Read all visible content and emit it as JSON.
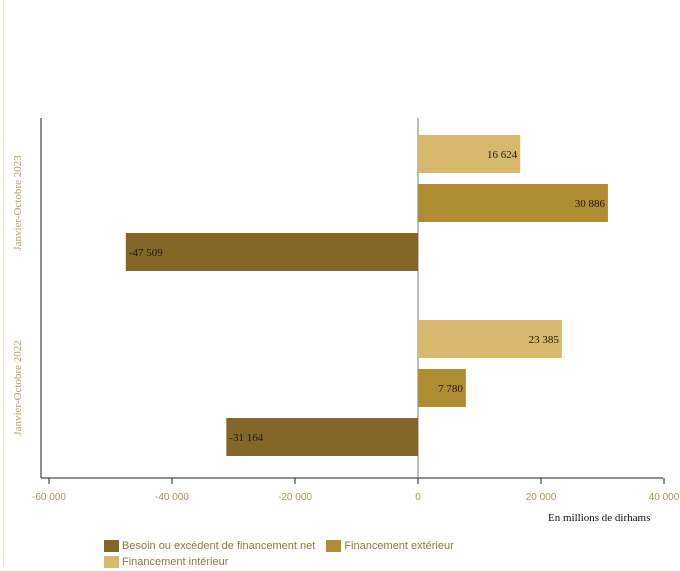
{
  "chart_data": {
    "type": "bar",
    "orientation": "horizontal",
    "categories": [
      "Janvier-Octobre 2023",
      "Janvier-Octobre 2022"
    ],
    "series": [
      {
        "name": "Financement intérieur",
        "color": "#d7b86c",
        "values": [
          16624,
          23385
        ],
        "labels": [
          "16 624",
          "23 385"
        ]
      },
      {
        "name": "Financement extérieur",
        "color": "#b08d32",
        "values": [
          30886,
          7780
        ],
        "labels": [
          "30 886",
          "7 780"
        ]
      },
      {
        "name": "Besoin ou excédent de financement net",
        "color": "#836628",
        "values": [
          -47509,
          -31164
        ],
        "labels": [
          "-47 509",
          "-31 164"
        ]
      }
    ],
    "xlim": [
      -60000,
      40000
    ],
    "xticks": [
      -60000,
      -40000,
      -20000,
      0,
      20000,
      40000
    ],
    "xtick_labels": [
      "-60 000",
      "-40 000",
      "-20 000",
      "0",
      "20 000",
      "40 000"
    ],
    "xlabel": "En millions de dirhams",
    "grid": false,
    "legend_position": "bottom-left"
  },
  "legend": {
    "items": [
      {
        "label": "Besoin ou excédent de financement net",
        "color": "#836628"
      },
      {
        "label": "Financement extérieur",
        "color": "#b08d32"
      },
      {
        "label": "Financement intérieur",
        "color": "#d7b86c"
      }
    ]
  }
}
